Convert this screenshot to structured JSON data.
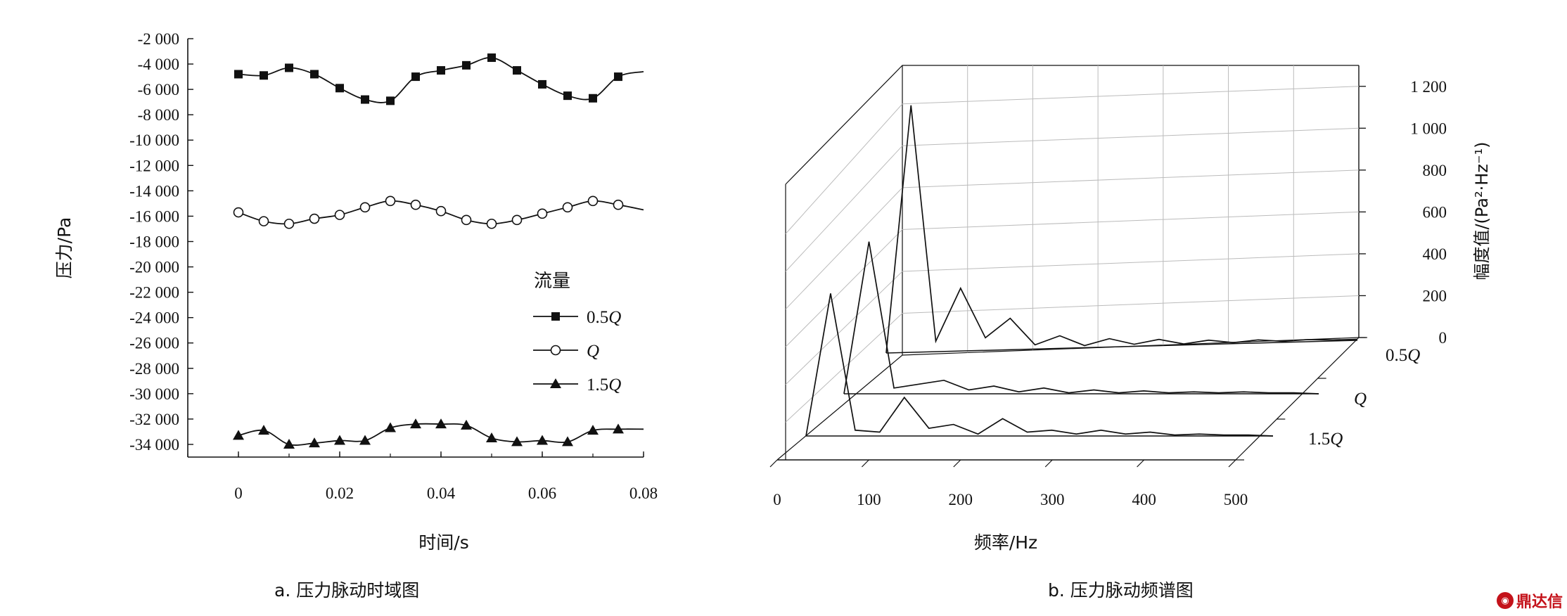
{
  "chart_data": [
    {
      "type": "line",
      "xlabel": "时间/s",
      "ylabel": "压力/Pa",
      "x_ticks": [
        "0",
        "0.02",
        "0.04",
        "0.06",
        "0.08"
      ],
      "y_ticks": [
        "-2 000",
        "-4 000",
        "-6 000",
        "-8 000",
        "-10 000",
        "-12 000",
        "-14 000",
        "-16 000",
        "-18 000",
        "-20 000",
        "-22 000",
        "-24 000",
        "-26 000",
        "-28 000",
        "-30 000",
        "-32 000",
        "-34 000"
      ],
      "xlim": [
        -0.01,
        0.08
      ],
      "ylim": [
        -35000,
        -2000
      ],
      "legend_title": "流量",
      "legend_position": "right-middle",
      "series": [
        {
          "name": "0.5Q",
          "marker": "square",
          "x": [
            0,
            0.005,
            0.01,
            0.015,
            0.02,
            0.025,
            0.03,
            0.035,
            0.04,
            0.045,
            0.05,
            0.055,
            0.06,
            0.065,
            0.07,
            0.075,
            0.08
          ],
          "y": [
            -4800,
            -4900,
            -4300,
            -4800,
            -5900,
            -6800,
            -6900,
            -5000,
            -4500,
            -4100,
            -3500,
            -4500,
            -5600,
            -6500,
            -6700,
            -5000,
            -4600
          ]
        },
        {
          "name": "Q",
          "marker": "circle",
          "x": [
            0,
            0.005,
            0.01,
            0.015,
            0.02,
            0.025,
            0.03,
            0.035,
            0.04,
            0.045,
            0.05,
            0.055,
            0.06,
            0.065,
            0.07,
            0.075,
            0.08
          ],
          "y": [
            -15700,
            -16400,
            -16600,
            -16200,
            -15900,
            -15300,
            -14800,
            -15100,
            -15600,
            -16300,
            -16600,
            -16300,
            -15800,
            -15300,
            -14800,
            -15100,
            -15500
          ]
        },
        {
          "name": "1.5Q",
          "marker": "triangle",
          "x": [
            0,
            0.005,
            0.01,
            0.015,
            0.02,
            0.025,
            0.03,
            0.035,
            0.04,
            0.045,
            0.05,
            0.055,
            0.06,
            0.065,
            0.07,
            0.075,
            0.08
          ],
          "y": [
            -33300,
            -32900,
            -34000,
            -33900,
            -33700,
            -33700,
            -32700,
            -32400,
            -32400,
            -32500,
            -33500,
            -33800,
            -33700,
            -33800,
            -32900,
            -32800,
            -32800
          ]
        }
      ]
    },
    {
      "type": "line",
      "xlabel": "频率/Hz",
      "zlabel": "幅度值/(Pa²·Hz⁻¹)",
      "x_ticks": [
        "0",
        "100",
        "200",
        "300",
        "400",
        "500"
      ],
      "z_ticks": [
        "0",
        "200",
        "400",
        "600",
        "800",
        "1 000",
        "1 200"
      ],
      "xlim": [
        0,
        500
      ],
      "zlim": [
        0,
        1300
      ],
      "series": [
        {
          "name": "0.5Q",
          "x": [
            25,
            50,
            75,
            100,
            125,
            150,
            175,
            200,
            225,
            250,
            275,
            300,
            325,
            350,
            375,
            400,
            425,
            450,
            475,
            500
          ],
          "y": [
            0,
            1180,
            50,
            300,
            60,
            150,
            20,
            60,
            10,
            40,
            10,
            30,
            5,
            20,
            5,
            15,
            5,
            10,
            5,
            5
          ]
        },
        {
          "name": "Q",
          "x": [
            25,
            50,
            75,
            100,
            125,
            150,
            175,
            200,
            225,
            250,
            275,
            300,
            325,
            350,
            375,
            400,
            425,
            450,
            475,
            500
          ],
          "y": [
            0,
            790,
            30,
            50,
            70,
            20,
            40,
            10,
            30,
            5,
            20,
            5,
            15,
            5,
            10,
            5,
            10,
            5,
            5,
            0
          ]
        },
        {
          "name": "1.5Q",
          "x": [
            25,
            50,
            75,
            100,
            125,
            150,
            175,
            200,
            225,
            250,
            275,
            300,
            325,
            350,
            375,
            400,
            425,
            450,
            475,
            500
          ],
          "y": [
            0,
            740,
            30,
            20,
            200,
            40,
            60,
            10,
            90,
            20,
            30,
            10,
            30,
            10,
            20,
            5,
            10,
            5,
            5,
            0
          ]
        }
      ]
    }
  ],
  "captions": {
    "a": "a. 压力脉动时域图",
    "b": "b. 压力脉动频谱图"
  },
  "watermark": "鼎达信"
}
